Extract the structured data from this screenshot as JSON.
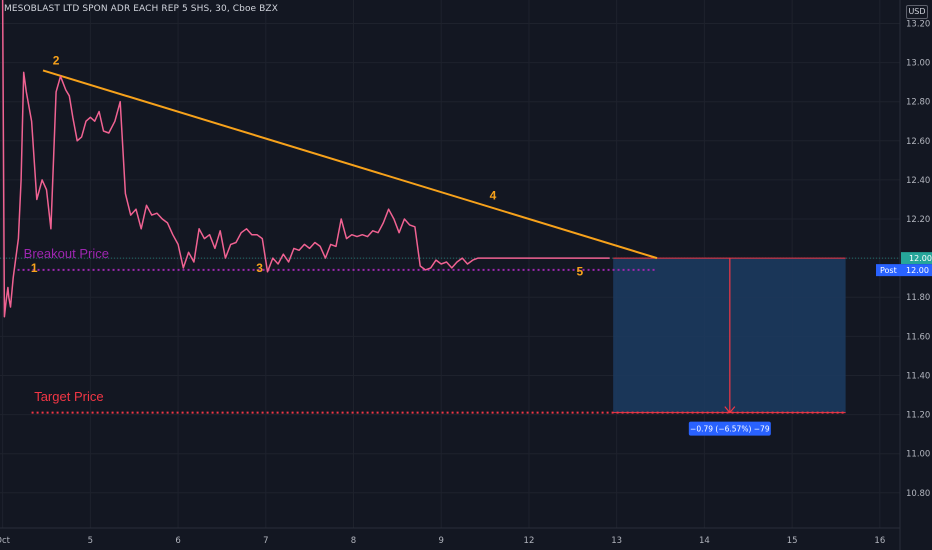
{
  "header": {
    "symbol_line": "MESOBLAST LTD SPON ADR EACH REP 5 SHS, 30, Cboe BZX",
    "currency": "USD"
  },
  "colors": {
    "background": "#131722",
    "price_line": "#f06292",
    "trendline": "#f7a21b",
    "breakout_line": "#9c27b0",
    "target_line": "#f23645",
    "projection_box": "#1c3a5e",
    "badge_blue": "#2962ff",
    "wave_labels": "#f7a21b"
  },
  "chart_data": {
    "type": "line",
    "title": "MESOBLAST LTD SPON ADR EACH REP 5 SHS, 30, Cboe BZX",
    "x_ticks": [
      "Oct",
      "5",
      "6",
      "7",
      "8",
      "9",
      "12",
      "13",
      "14",
      "15",
      "16"
    ],
    "y_ticks": [
      "13.20",
      "13.00",
      "12.80",
      "12.60",
      "12.40",
      "12.20",
      "12.00",
      "11.80",
      "11.60",
      "11.40",
      "11.20",
      "11.00",
      "10.80"
    ],
    "ylim": [
      10.62,
      13.32
    ],
    "xlim": [
      -0.03,
      10.23
    ],
    "series": [
      {
        "type": "price",
        "x": [
          0.0,
          0.02,
          0.04,
          0.06,
          0.07,
          0.09,
          0.12,
          0.15,
          0.18,
          0.21,
          0.24,
          0.27,
          0.33,
          0.39,
          0.45,
          0.5,
          0.55,
          0.61,
          0.66,
          0.72,
          0.76,
          0.8,
          0.85,
          0.9,
          0.95,
          1.0,
          1.05,
          1.1,
          1.15,
          1.21,
          1.28,
          1.34,
          1.4,
          1.46,
          1.52,
          1.58,
          1.64,
          1.7,
          1.76,
          1.82,
          1.88,
          1.94,
          2.0,
          2.06,
          2.12,
          2.18,
          2.24,
          2.3,
          2.36,
          2.42,
          2.48,
          2.54,
          2.6,
          2.66,
          2.72,
          2.78,
          2.84,
          2.9,
          2.96,
          3.02,
          3.08,
          3.14,
          3.2,
          3.26,
          3.32,
          3.38,
          3.44,
          3.5,
          3.56,
          3.62,
          3.68,
          3.74,
          3.8,
          3.86,
          3.92,
          3.98,
          4.04,
          4.1,
          4.16,
          4.22,
          4.28,
          4.34,
          4.4,
          4.46,
          4.52,
          4.58,
          4.64,
          4.7,
          4.76,
          4.82,
          4.88,
          4.94,
          5.0,
          5.06,
          5.12,
          5.18,
          5.24,
          5.3,
          5.36,
          5.42,
          5.48,
          5.54,
          5.6,
          5.66,
          5.72,
          5.78,
          5.84,
          5.9,
          5.96,
          6.02,
          6.08,
          6.14,
          6.2,
          6.26,
          6.32,
          6.38,
          6.44,
          6.5,
          6.56,
          6.62,
          6.68,
          6.74,
          6.8,
          6.86,
          6.92
        ],
        "y": [
          13.35,
          11.7,
          11.78,
          11.85,
          11.8,
          11.75,
          11.9,
          12.0,
          12.1,
          12.4,
          12.95,
          12.85,
          12.7,
          12.3,
          12.4,
          12.35,
          12.15,
          12.85,
          12.93,
          12.86,
          12.83,
          12.72,
          12.6,
          12.62,
          12.7,
          12.72,
          12.7,
          12.75,
          12.65,
          12.64,
          12.7,
          12.8,
          12.33,
          12.22,
          12.25,
          12.15,
          12.27,
          12.22,
          12.23,
          12.2,
          12.18,
          12.12,
          12.07,
          11.95,
          12.03,
          11.98,
          12.15,
          12.1,
          12.12,
          12.05,
          12.14,
          12.0,
          12.07,
          12.08,
          12.13,
          12.15,
          12.12,
          12.12,
          12.1,
          11.93,
          12.0,
          11.97,
          12.02,
          11.98,
          12.05,
          12.04,
          12.07,
          12.05,
          12.08,
          12.06,
          12.0,
          12.07,
          12.06,
          12.2,
          12.1,
          12.12,
          12.11,
          12.12,
          12.11,
          12.14,
          12.13,
          12.18,
          12.25,
          12.2,
          12.13,
          12.2,
          12.17,
          12.16,
          11.96,
          11.94,
          11.95,
          11.99,
          11.97,
          11.98,
          11.95,
          11.98,
          12.0,
          11.97,
          11.99,
          12.0,
          12.0,
          12.0,
          12.0,
          12.0,
          12.0,
          12.0,
          12.0,
          12.0,
          12.0,
          12.0,
          12.0,
          12.0,
          12.0,
          12.0,
          12.0,
          12.0,
          12.0,
          12.0,
          12.0,
          12.0,
          12.0,
          12.0,
          12.0,
          12.0,
          12.0
        ]
      }
    ],
    "trendline": {
      "x": [
        0.46,
        7.46
      ],
      "y": [
        12.96,
        12.0
      ]
    },
    "breakout_line": {
      "x": [
        0.17,
        7.46
      ],
      "y": [
        11.94,
        11.94
      ]
    },
    "target_line": {
      "x": [
        0.33,
        9.61
      ],
      "y": [
        11.21,
        11.21
      ]
    },
    "projection": {
      "x_from": 6.96,
      "x_to": 9.61,
      "y_top": 12.0,
      "y_bottom": 11.21,
      "arrow_x": 8.29
    },
    "wave_labels": [
      {
        "text": "1",
        "x": 0.36,
        "y": 11.93
      },
      {
        "text": "2",
        "x": 0.61,
        "y": 12.99
      },
      {
        "text": "3",
        "x": 2.93,
        "y": 11.93
      },
      {
        "text": "4",
        "x": 5.59,
        "y": 12.3
      },
      {
        "text": "5",
        "x": 6.58,
        "y": 11.91
      }
    ],
    "annotations": [
      {
        "text": "Breakout Price",
        "x": 0.24,
        "y": 12.0
      },
      {
        "text": "Target Price",
        "x": 0.36,
        "y": 11.27
      }
    ],
    "price_badges": [
      {
        "label": "",
        "value": "12.00"
      },
      {
        "label": "Post",
        "value": "12.00"
      }
    ],
    "measure_badge": "−0.79 (−6.57%) −79"
  }
}
